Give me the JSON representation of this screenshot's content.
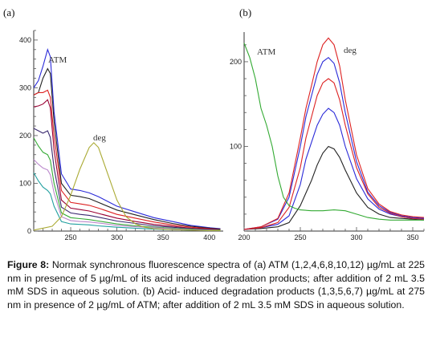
{
  "figure": {
    "caption_label": "Figure 8:",
    "caption_text": "Normak synchronous fluorescence spectra of (a) ATM (1,2,4,6,8,10,12) µg/mL at 225 nm in presence of 5 µg/mL of its acid induced degradation products; after addition of 2 mL 3.5 mM SDS in aqueous solution. (b) Acid- induced degradation products (1,3,5,6,7) µg/mL at 275 nm in presence of 2 µg/mL of ATM; after addition of 2 mL 3.5 mM SDS in aqueous solution."
  },
  "chart_data": [
    {
      "type": "line",
      "panel_label": "(a)",
      "annotations": [
        "ATM",
        "deg"
      ],
      "xlabel": "",
      "ylabel": "",
      "xlim": [
        210,
        415
      ],
      "ylim": [
        0,
        420
      ],
      "x_ticks": [
        250,
        300,
        350,
        400
      ],
      "y_ticks": [
        0,
        100,
        200,
        300,
        400
      ],
      "grid": false,
      "series": [
        {
          "color": "#2a2ad8",
          "x": [
            210,
            215,
            220,
            225,
            228,
            232,
            240,
            250,
            260,
            270,
            280,
            300,
            320,
            340,
            360,
            380,
            400,
            412
          ],
          "y": [
            300,
            315,
            345,
            380,
            365,
            250,
            120,
            88,
            85,
            80,
            72,
            52,
            40,
            28,
            20,
            12,
            7,
            5
          ]
        },
        {
          "color": "#222222",
          "x": [
            210,
            215,
            220,
            225,
            228,
            232,
            240,
            250,
            260,
            270,
            280,
            300,
            320,
            340,
            360,
            380,
            400,
            412
          ],
          "y": [
            285,
            290,
            320,
            340,
            330,
            230,
            100,
            75,
            72,
            68,
            60,
            44,
            34,
            24,
            16,
            10,
            6,
            4
          ]
        },
        {
          "color": "#dd2222",
          "x": [
            210,
            215,
            220,
            225,
            228,
            232,
            240,
            250,
            260,
            270,
            280,
            300,
            320,
            340,
            360,
            380,
            400,
            412
          ],
          "y": [
            285,
            290,
            290,
            295,
            280,
            200,
            85,
            60,
            57,
            54,
            48,
            35,
            27,
            19,
            13,
            8,
            5,
            3
          ]
        },
        {
          "color": "#990033",
          "x": [
            210,
            215,
            220,
            225,
            228,
            232,
            240,
            250,
            260,
            270,
            280,
            300,
            320,
            340,
            360,
            380,
            400,
            412
          ],
          "y": [
            260,
            262,
            266,
            275,
            258,
            170,
            65,
            48,
            45,
            42,
            37,
            27,
            20,
            14,
            10,
            6,
            4,
            3
          ]
        },
        {
          "color": "#3a2a70",
          "x": [
            210,
            215,
            220,
            225,
            228,
            232,
            240,
            250,
            260,
            270,
            280,
            300,
            320,
            340,
            360,
            380,
            400,
            412
          ],
          "y": [
            215,
            210,
            205,
            210,
            196,
            132,
            50,
            38,
            35,
            33,
            29,
            21,
            16,
            11,
            8,
            5,
            3,
            2
          ]
        },
        {
          "color": "#33aa33",
          "x": [
            210,
            215,
            220,
            225,
            228,
            232,
            240,
            250,
            260,
            270,
            280,
            300,
            320,
            340,
            360,
            380,
            400,
            412
          ],
          "y": [
            195,
            178,
            165,
            160,
            148,
            100,
            38,
            28,
            26,
            24,
            21,
            15,
            11,
            8,
            6,
            4,
            2,
            2
          ]
        },
        {
          "color": "#bb88cc",
          "x": [
            210,
            215,
            220,
            225,
            228,
            232,
            240,
            250,
            260,
            270,
            280,
            300,
            320,
            340,
            360,
            380,
            400,
            412
          ],
          "y": [
            150,
            140,
            132,
            128,
            118,
            80,
            30,
            22,
            20,
            19,
            17,
            12,
            9,
            7,
            5,
            3,
            2,
            1
          ]
        },
        {
          "color": "#22a0a0",
          "x": [
            210,
            215,
            220,
            225,
            228,
            232,
            240,
            250,
            260,
            270,
            280,
            300,
            320,
            340,
            360,
            380,
            400,
            412
          ],
          "y": [
            122,
            105,
            92,
            85,
            78,
            52,
            20,
            15,
            14,
            13,
            11,
            8,
            6,
            4,
            3,
            2,
            1,
            1
          ]
        },
        {
          "color": "#aaaa33",
          "x": [
            210,
            230,
            240,
            250,
            260,
            270,
            275,
            280,
            290,
            300,
            310,
            320,
            330,
            340,
            360,
            380,
            400,
            412
          ],
          "y": [
            2,
            10,
            30,
            75,
            130,
            175,
            185,
            175,
            120,
            65,
            30,
            15,
            8,
            5,
            3,
            2,
            1,
            1
          ]
        }
      ]
    },
    {
      "type": "line",
      "panel_label": "(b)",
      "annotations": [
        "ATM",
        "deg"
      ],
      "xlabel": "",
      "ylabel": "",
      "xlim": [
        200,
        360
      ],
      "ylim": [
        0,
        235
      ],
      "x_ticks": [
        200,
        250,
        300,
        350
      ],
      "y_ticks": [
        100,
        200
      ],
      "grid": false,
      "series": [
        {
          "color": "#222222",
          "x": [
            200,
            215,
            230,
            240,
            250,
            255,
            260,
            265,
            270,
            275,
            280,
            285,
            290,
            300,
            310,
            320,
            330,
            340,
            350,
            360
          ],
          "y": [
            2,
            3,
            5,
            10,
            30,
            45,
            60,
            78,
            92,
            100,
            97,
            87,
            72,
            45,
            28,
            20,
            16,
            15,
            14,
            13
          ]
        },
        {
          "color": "#2a2ad8",
          "x": [
            200,
            215,
            230,
            240,
            250,
            255,
            260,
            265,
            270,
            275,
            280,
            285,
            290,
            300,
            310,
            320,
            330,
            340,
            350,
            360
          ],
          "y": [
            2,
            4,
            8,
            18,
            55,
            85,
            105,
            125,
            138,
            145,
            140,
            125,
            100,
            62,
            38,
            26,
            20,
            17,
            15,
            14
          ]
        },
        {
          "color": "#dd2222",
          "x": [
            200,
            215,
            230,
            240,
            250,
            255,
            260,
            265,
            270,
            275,
            280,
            285,
            290,
            300,
            310,
            320,
            330,
            340,
            350,
            360
          ],
          "y": [
            2,
            4,
            10,
            28,
            75,
            110,
            135,
            160,
            175,
            180,
            175,
            155,
            125,
            75,
            44,
            28,
            21,
            17,
            15,
            14
          ]
        },
        {
          "color": "#2a2ad8",
          "x": [
            200,
            215,
            230,
            240,
            250,
            255,
            260,
            265,
            270,
            275,
            280,
            285,
            290,
            300,
            310,
            320,
            330,
            340,
            350,
            360
          ],
          "y": [
            2,
            5,
            14,
            40,
            100,
            135,
            160,
            185,
            200,
            205,
            198,
            175,
            140,
            82,
            46,
            30,
            22,
            18,
            16,
            15
          ]
        },
        {
          "color": "#dd2222",
          "x": [
            200,
            215,
            230,
            240,
            250,
            255,
            260,
            265,
            270,
            275,
            280,
            285,
            290,
            300,
            310,
            320,
            330,
            340,
            350,
            360
          ],
          "y": [
            2,
            5,
            15,
            45,
            110,
            145,
            172,
            200,
            220,
            228,
            220,
            195,
            155,
            90,
            50,
            32,
            23,
            19,
            17,
            16
          ]
        },
        {
          "color": "#33aa33",
          "x": [
            200,
            205,
            210,
            215,
            220,
            225,
            230,
            235,
            240,
            245,
            250,
            260,
            270,
            280,
            290,
            300,
            310,
            320,
            330,
            340,
            350,
            360
          ],
          "y": [
            222,
            205,
            180,
            145,
            125,
            100,
            65,
            40,
            30,
            27,
            25,
            24,
            24,
            25,
            24,
            20,
            16,
            14,
            13,
            13,
            13,
            13
          ]
        }
      ]
    }
  ]
}
